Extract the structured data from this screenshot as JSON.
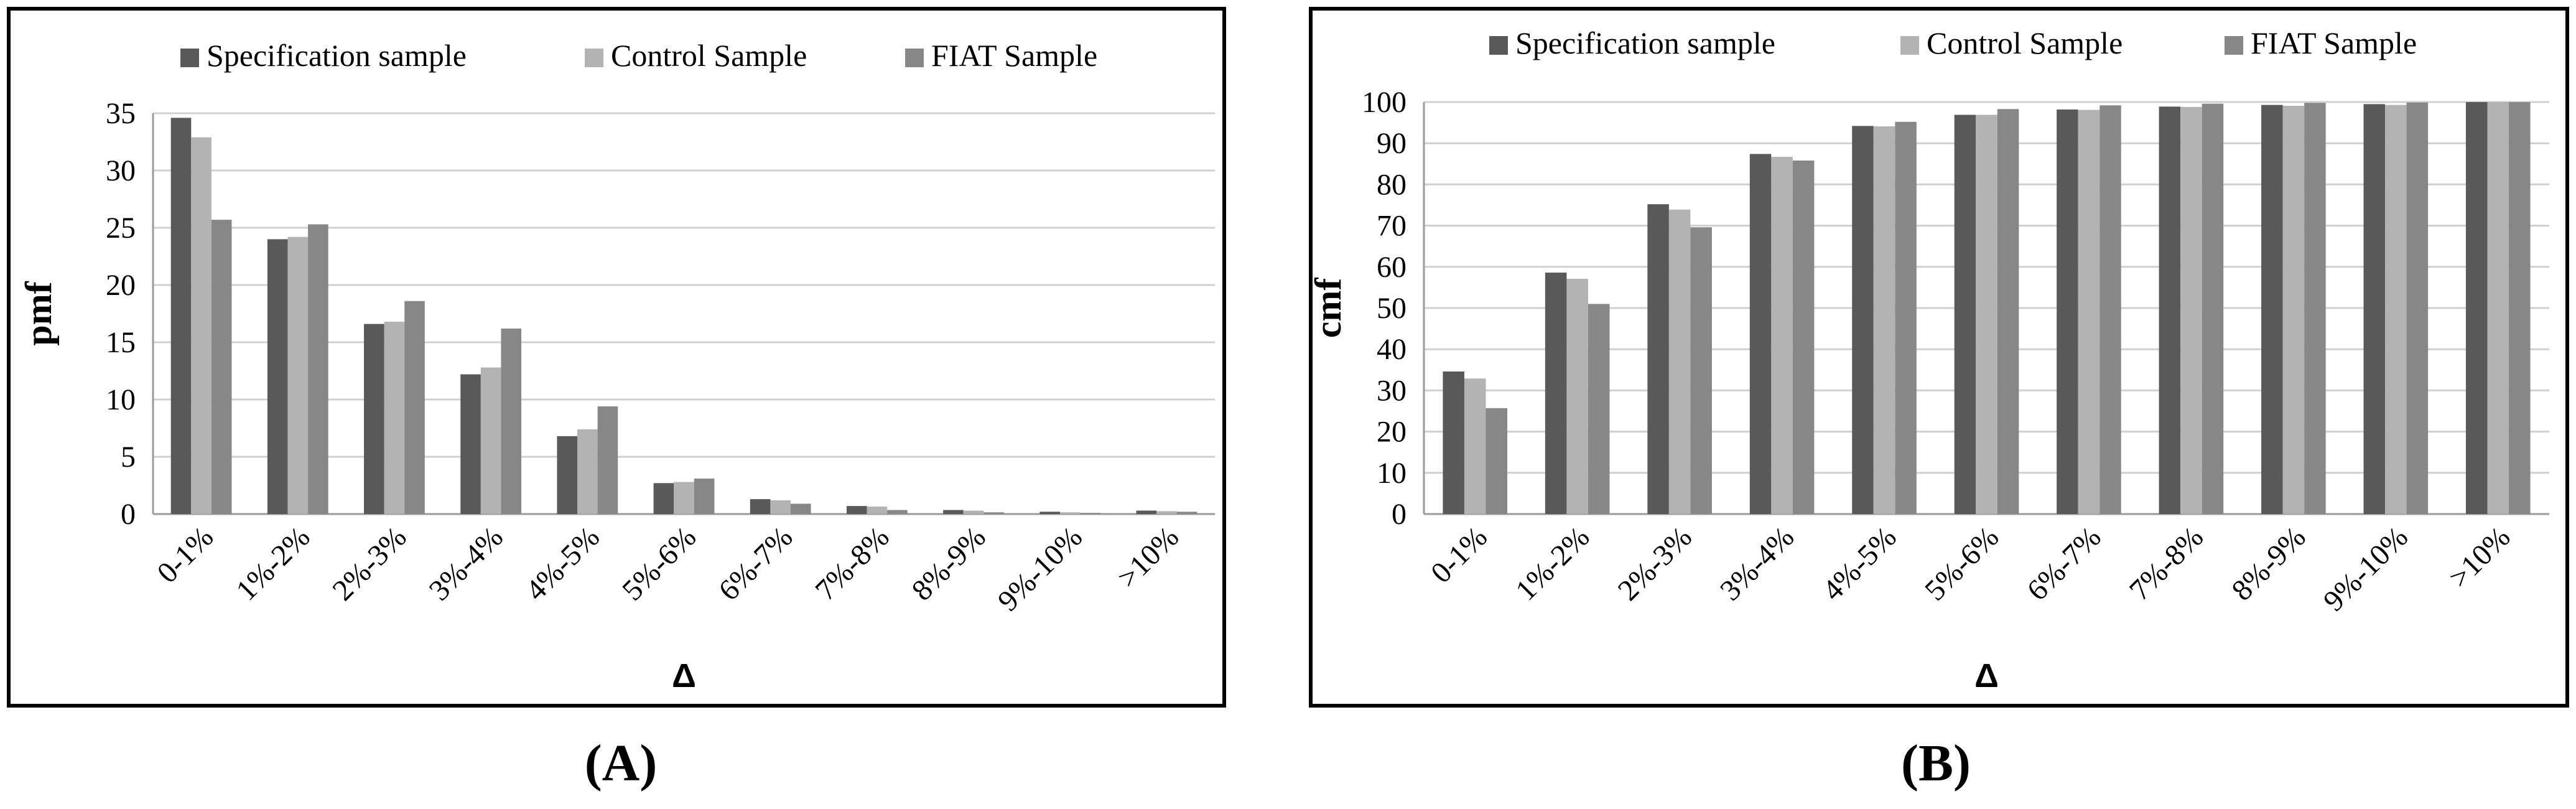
{
  "chart_data": [
    {
      "type": "bar",
      "panel_label": "(A)",
      "title": "",
      "xlabel": "Δ",
      "ylabel": "pmf",
      "ylim": [
        0,
        35
      ],
      "yticks": [
        "0",
        "5",
        "10",
        "15",
        "20",
        "25",
        "30",
        "35"
      ],
      "ytick_values": [
        0,
        5,
        10,
        15,
        20,
        25,
        30,
        35
      ],
      "grid": true,
      "legend_position": "top",
      "categories": [
        "0-1%",
        "1%-2%",
        "2%-3%",
        "3%-4%",
        "4%-5%",
        "5%-6%",
        "6%-7%",
        "7%-8%",
        "8%-9%",
        "9%-10%",
        ">10%"
      ],
      "series": [
        {
          "name": "Specification sample",
          "color": "#595959",
          "values": [
            34.6,
            24.0,
            16.6,
            12.2,
            6.8,
            2.7,
            1.3,
            0.7,
            0.35,
            0.2,
            0.3
          ]
        },
        {
          "name": "Control Sample",
          "color": "#b3b3b3",
          "values": [
            32.9,
            24.2,
            16.8,
            12.8,
            7.4,
            2.8,
            1.2,
            0.65,
            0.3,
            0.15,
            0.25
          ]
        },
        {
          "name": "FIAT Sample",
          "color": "#878787",
          "values": [
            25.7,
            25.3,
            18.6,
            16.2,
            9.4,
            3.1,
            0.9,
            0.35,
            0.15,
            0.1,
            0.2
          ]
        }
      ]
    },
    {
      "type": "bar",
      "panel_label": "(B)",
      "title": "",
      "xlabel": "Δ",
      "ylabel": "cmf",
      "ylim": [
        0,
        100
      ],
      "yticks": [
        "0",
        "10",
        "20",
        "30",
        "40",
        "50",
        "60",
        "70",
        "80",
        "90",
        "100"
      ],
      "ytick_values": [
        0,
        10,
        20,
        30,
        40,
        50,
        60,
        70,
        80,
        90,
        100
      ],
      "grid": true,
      "legend_position": "top",
      "categories": [
        "0-1%",
        "1%-2%",
        "2%-3%",
        "3%-4%",
        "4%-5%",
        "5%-6%",
        "6%-7%",
        "7%-8%",
        "8%-9%",
        "9%-10%",
        ">10%"
      ],
      "series": [
        {
          "name": "Specification sample",
          "color": "#595959",
          "values": [
            34.6,
            58.6,
            75.2,
            87.4,
            94.2,
            96.9,
            98.2,
            98.9,
            99.3,
            99.5,
            100
          ]
        },
        {
          "name": "Control Sample",
          "color": "#b3b3b3",
          "values": [
            32.9,
            57.1,
            73.9,
            86.7,
            94.1,
            96.9,
            98.1,
            98.8,
            99.1,
            99.3,
            100
          ]
        },
        {
          "name": "FIAT Sample",
          "color": "#878787",
          "values": [
            25.7,
            51.0,
            69.6,
            85.8,
            95.2,
            98.3,
            99.2,
            99.6,
            99.8,
            99.9,
            100
          ]
        }
      ]
    }
  ]
}
